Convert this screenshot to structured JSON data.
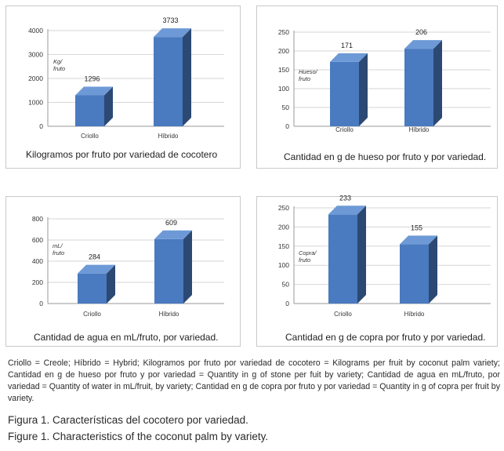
{
  "chart_data": [
    {
      "type": "bar",
      "title": "Kilogramos por fruto por variedad de cocotero",
      "ylabel": "Kg/ fruto",
      "categories": [
        "Criollo",
        "Híbrido"
      ],
      "values": [
        1296,
        3733
      ],
      "data_labels": [
        "1296",
        "3733"
      ],
      "yticks": [
        0,
        1000,
        2000,
        3000,
        4000
      ],
      "ylim": [
        0,
        4000
      ],
      "bar_color": "#4a7ac0"
    },
    {
      "type": "bar",
      "title": "Cantidad en g de hueso por fruto y por variedad.",
      "ylabel": "Hueso/ fruto",
      "categories": [
        "Criollo",
        "Híbrido"
      ],
      "values": [
        171,
        206
      ],
      "data_labels": [
        "171",
        "206"
      ],
      "yticks": [
        0,
        50,
        100,
        150,
        200,
        250
      ],
      "ylim": [
        0,
        250
      ],
      "bar_color": "#4a7ac0"
    },
    {
      "type": "bar",
      "title": "Cantidad de agua en mL/fruto, por variedad.",
      "ylabel": "mL/ fruto",
      "categories": [
        "Criollo",
        "Híbrido"
      ],
      "values": [
        284,
        609
      ],
      "data_labels": [
        "284",
        "609"
      ],
      "yticks": [
        0,
        200,
        400,
        600,
        800
      ],
      "ylim": [
        0,
        800
      ],
      "bar_color": "#4a7ac0"
    },
    {
      "type": "bar",
      "title": "Cantidad en g de copra por fruto y por variedad.",
      "ylabel": "Copra/ fruto",
      "categories": [
        "Criollo",
        "Híbrido"
      ],
      "values": [
        233,
        155
      ],
      "data_labels": [
        "233",
        "155"
      ],
      "yticks": [
        0,
        50,
        100,
        150,
        200,
        250
      ],
      "ylim": [
        0,
        250
      ],
      "bar_color": "#4a7ac0"
    }
  ],
  "caption": "Criollo = Creole; Híbrido = Hybrid; Kilogramos por fruto por variedad de cocotero = Kilograms per fruit by coconut palm variety; Cantidad en g de hueso por fruto y por variedad = Quantity in g of stone per fuit by variety; Cantidad de agua en mL/fruto, por variedad = Quantity of water in mL/fruit, by variety; Cantidad en g de copra por fruto y por variedad = Quantity in g of copra per fruit by variety.",
  "figure_es": "Figura 1. Características del cocotero por variedad.",
  "figure_en": "Figure 1. Characteristics of the coconut palm by variety."
}
